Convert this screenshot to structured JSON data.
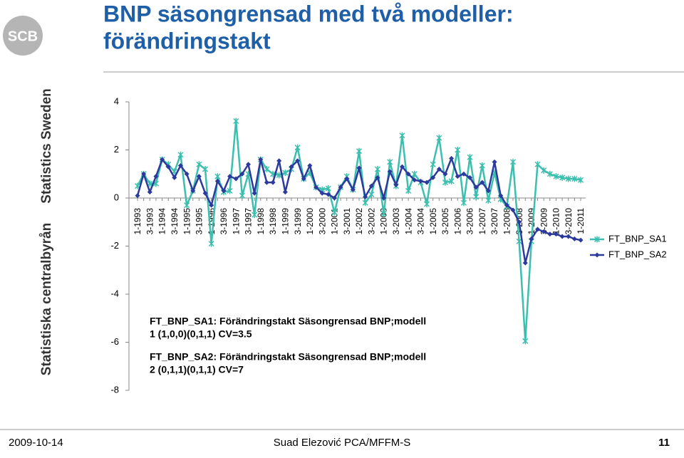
{
  "slide": {
    "logo": "SCB",
    "side_top": "Statistics Sweden",
    "side_bottom": "Statistiska centralbyrån",
    "date": "2009-10-14",
    "author": "Suad Elezović PCA/MFFM-S",
    "page": "11"
  },
  "chart_data": {
    "type": "line",
    "title": [
      "BNP säsongrensad med två modeller:",
      "förändringstakt"
    ],
    "categories": [
      "1-1993",
      null,
      "3-1993",
      null,
      "1-1994",
      null,
      "3-1994",
      null,
      "1-1995",
      null,
      "3-1995",
      null,
      "1-1996",
      null,
      "3-1996",
      null,
      "1-1997",
      null,
      "3-1997",
      null,
      "1-1998",
      null,
      "3-1998",
      null,
      "1-1999",
      null,
      "3-1999",
      null,
      "1-2000",
      null,
      "3-2000",
      null,
      "1-2001",
      null,
      "3-2001",
      null,
      "1-2002",
      null,
      "3-2002",
      null,
      "1-2003",
      null,
      "3-2003",
      null,
      "1-2004",
      null,
      "3-2004",
      null,
      "1-2005",
      null,
      "3-2005",
      null,
      "1-2006",
      null,
      "3-2006",
      null,
      "1-2007",
      null,
      "3-2007",
      null,
      "1-2008",
      null,
      "3-2008",
      null,
      "1-2009",
      null,
      "3-2009",
      null,
      "1-2010",
      null,
      "3-2010",
      null,
      "1-2011"
    ],
    "series": [
      {
        "name": "FT_BNP_SA1",
        "color": "#3cbfae",
        "marker": "star",
        "values": [
          0.5,
          1.0,
          0.6,
          0.6,
          1.6,
          1.4,
          1.1,
          1.8,
          -0.3,
          0.3,
          1.4,
          1.2,
          -1.9,
          0.9,
          0.25,
          0.3,
          3.2,
          0.1,
          1.0,
          -0.7,
          1.6,
          1.2,
          1.0,
          0.95,
          1.05,
          1.2,
          2.1,
          0.8,
          1.05,
          0.45,
          0.35,
          0.4,
          -0.6,
          0.45,
          0.9,
          0.35,
          1.95,
          -0.2,
          0.15,
          1.2,
          -0.65,
          1.5,
          0.5,
          2.6,
          0.3,
          1.0,
          0.65,
          -0.25,
          1.4,
          2.5,
          0.65,
          0.7,
          2.0,
          -0.2,
          1.7,
          0.05,
          1.35,
          -0.1,
          1.05,
          -0.05,
          -0.35,
          1.5,
          -1.8,
          -5.95,
          -1.8,
          1.4,
          1.15,
          1.0,
          0.9,
          0.85,
          0.8,
          0.8,
          0.75
        ]
      },
      {
        "name": "FT_BNP_SA2",
        "color": "#2b3a9c",
        "marker": "diamond",
        "values": [
          0.1,
          1.0,
          0.25,
          0.9,
          1.6,
          1.3,
          0.85,
          1.35,
          1.0,
          0.3,
          0.9,
          0.2,
          -0.3,
          0.7,
          0.3,
          0.9,
          0.8,
          1.0,
          1.4,
          0.2,
          1.6,
          0.65,
          0.65,
          1.55,
          0.25,
          1.3,
          1.55,
          0.8,
          1.35,
          0.45,
          0.2,
          0.15,
          0.0,
          0.45,
          0.8,
          0.35,
          1.25,
          0.05,
          0.5,
          0.85,
          0.0,
          1.1,
          0.55,
          1.3,
          1.0,
          0.75,
          0.7,
          0.65,
          0.85,
          1.2,
          1.0,
          1.65,
          0.9,
          1.0,
          0.85,
          0.45,
          0.65,
          0.3,
          1.5,
          0.1,
          -0.3,
          -0.5,
          -1.0,
          -2.7,
          -1.7,
          -1.3,
          -1.4,
          -1.5,
          -1.5,
          -1.6,
          -1.6,
          -1.7,
          -1.75
        ]
      }
    ],
    "ylim": [
      -8,
      4
    ],
    "yticks": [
      -8,
      -6,
      -4,
      -2,
      0,
      2,
      4
    ],
    "grid": false,
    "legend": "right",
    "annotations": [
      "FT_BNP_SA1: Förändringstakt  Säsongrensad BNP;modell",
      "1 (1,0,0)(0,1,1) CV=3.5",
      "FT_BNP_SA2: Förändringstakt  Säsongrensad BNP;modell",
      "2 (0,1,1)(0,1,1) CV=7"
    ]
  }
}
